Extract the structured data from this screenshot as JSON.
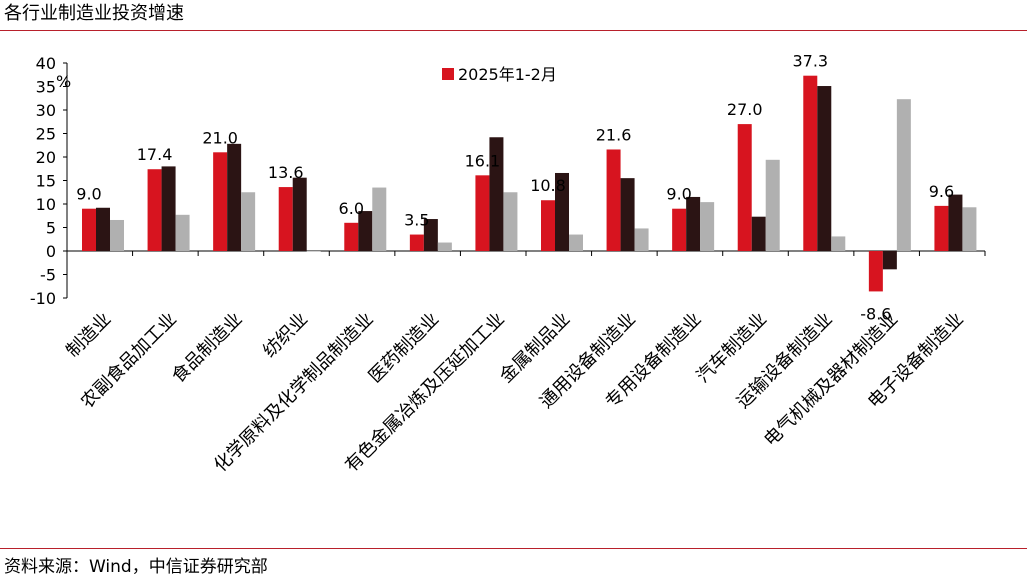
{
  "title": "各行业制造业投资增速",
  "source": "资料来源：Wind，中信证券研究部",
  "chart_data": {
    "type": "bar",
    "ylabel": "%",
    "ylim": [
      -10,
      40
    ],
    "yticks": [
      -10,
      -5,
      0,
      5,
      10,
      15,
      20,
      25,
      30,
      35,
      40
    ],
    "grid": false,
    "legend_position": "top-center",
    "categories": [
      "制造业",
      "农副食品加工业",
      "食品制造业",
      "纺织业",
      "化学原料及化学制品制造业",
      "医药制造业",
      "有色金属冶炼及压延加工业",
      "金属制品业",
      "通用设备制造业",
      "专用设备制造业",
      "汽车制造业",
      "运输设备制造业",
      "电气机械及器材制造业",
      "电子设备制造业"
    ],
    "series": [
      {
        "name": "2025年1-2月",
        "color": "#d7141f",
        "values": [
          9.0,
          17.4,
          21.0,
          13.6,
          6.0,
          3.5,
          16.1,
          10.8,
          21.6,
          9.0,
          27.0,
          37.3,
          -8.6,
          9.6
        ],
        "show_labels": true
      },
      {
        "name": "",
        "color": "#2b1414",
        "values": [
          9.2,
          18.0,
          22.8,
          15.6,
          8.5,
          6.8,
          24.2,
          16.6,
          15.5,
          11.5,
          7.3,
          35.1,
          -3.9,
          12.0
        ],
        "show_labels": false
      },
      {
        "name": "",
        "color": "#b0b0b0",
        "values": [
          6.6,
          7.7,
          12.5,
          -0.1,
          13.5,
          1.8,
          12.5,
          3.5,
          4.8,
          10.4,
          19.4,
          3.1,
          32.3,
          9.3
        ],
        "show_labels": false
      }
    ],
    "data_labels": [
      "9.0",
      "17.4",
      "21.0",
      "13.6",
      "6.0",
      "3.5",
      "16.1",
      "10.8",
      "21.6",
      "9.0",
      "27.0",
      "37.3",
      "-8.6",
      "9.6"
    ]
  }
}
